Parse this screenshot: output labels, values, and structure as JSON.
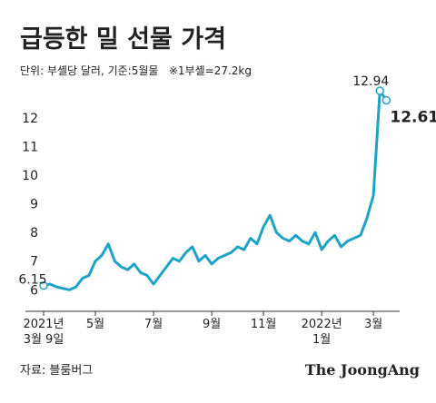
{
  "chart_data": {
    "type": "line",
    "title": "급등한 밀 선물 가격",
    "subtitle": "단위: 부셸당 달러, 기준:5월물   ※1부셸=27.2kg",
    "source": "자료: 블룸버그",
    "brand": "The JoongAng",
    "color": "#1ea3c6",
    "categories": [
      [
        "2021년",
        "3월 9일"
      ],
      null,
      null,
      null,
      null,
      null,
      null,
      null,
      [
        "5월"
      ],
      null,
      null,
      null,
      null,
      null,
      null,
      null,
      null,
      [
        "7월"
      ],
      null,
      null,
      null,
      null,
      null,
      null,
      null,
      null,
      [
        "9월"
      ],
      null,
      null,
      null,
      null,
      null,
      null,
      null,
      [
        "11월"
      ],
      null,
      null,
      null,
      null,
      null,
      null,
      null,
      null,
      [
        "2022년",
        "1월"
      ],
      null,
      null,
      null,
      null,
      null,
      null,
      null,
      [
        "3월"
      ],
      null,
      null
    ],
    "values": [
      6.15,
      6.2,
      6.1,
      6.05,
      6.0,
      6.1,
      6.4,
      6.5,
      7.0,
      7.2,
      7.6,
      7.0,
      6.8,
      6.7,
      6.9,
      6.6,
      6.5,
      6.2,
      6.5,
      6.8,
      7.1,
      7.0,
      7.3,
      7.5,
      7.0,
      7.2,
      6.9,
      7.1,
      7.2,
      7.3,
      7.5,
      7.4,
      7.8,
      7.6,
      8.2,
      8.6,
      8.0,
      7.8,
      7.7,
      7.9,
      7.7,
      7.6,
      8.0,
      7.4,
      7.7,
      7.9,
      7.5,
      7.7,
      7.8,
      7.9,
      8.5,
      9.3,
      12.94,
      12.61
    ],
    "ylim": [
      5.25,
      13.1
    ],
    "yticks": [
      6,
      7,
      8,
      9,
      10,
      11,
      12
    ],
    "grid": false
  }
}
